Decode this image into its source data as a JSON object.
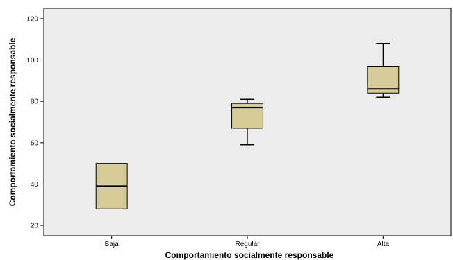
{
  "chart_data": {
    "type": "box",
    "xlabel": "Comportamiento socialmente responsable",
    "ylabel": "Comportamiento socialmente responsable",
    "ylim": [
      15,
      125
    ],
    "yticks": [
      20,
      40,
      60,
      80,
      100,
      120
    ],
    "grid": false,
    "box_color": "#d6cc98",
    "plot_background": "#ececec",
    "categories": [
      "Baja",
      "Regular",
      "Alta"
    ],
    "boxes": [
      {
        "category": "Baja",
        "min": 28,
        "q1": 28,
        "median": 39,
        "q3": 50,
        "max": 50
      },
      {
        "category": "Regular",
        "min": 59,
        "q1": 67,
        "median": 77,
        "q3": 79,
        "max": 81
      },
      {
        "category": "Alta",
        "min": 82,
        "q1": 84,
        "median": 86,
        "q3": 97,
        "max": 108
      }
    ]
  }
}
